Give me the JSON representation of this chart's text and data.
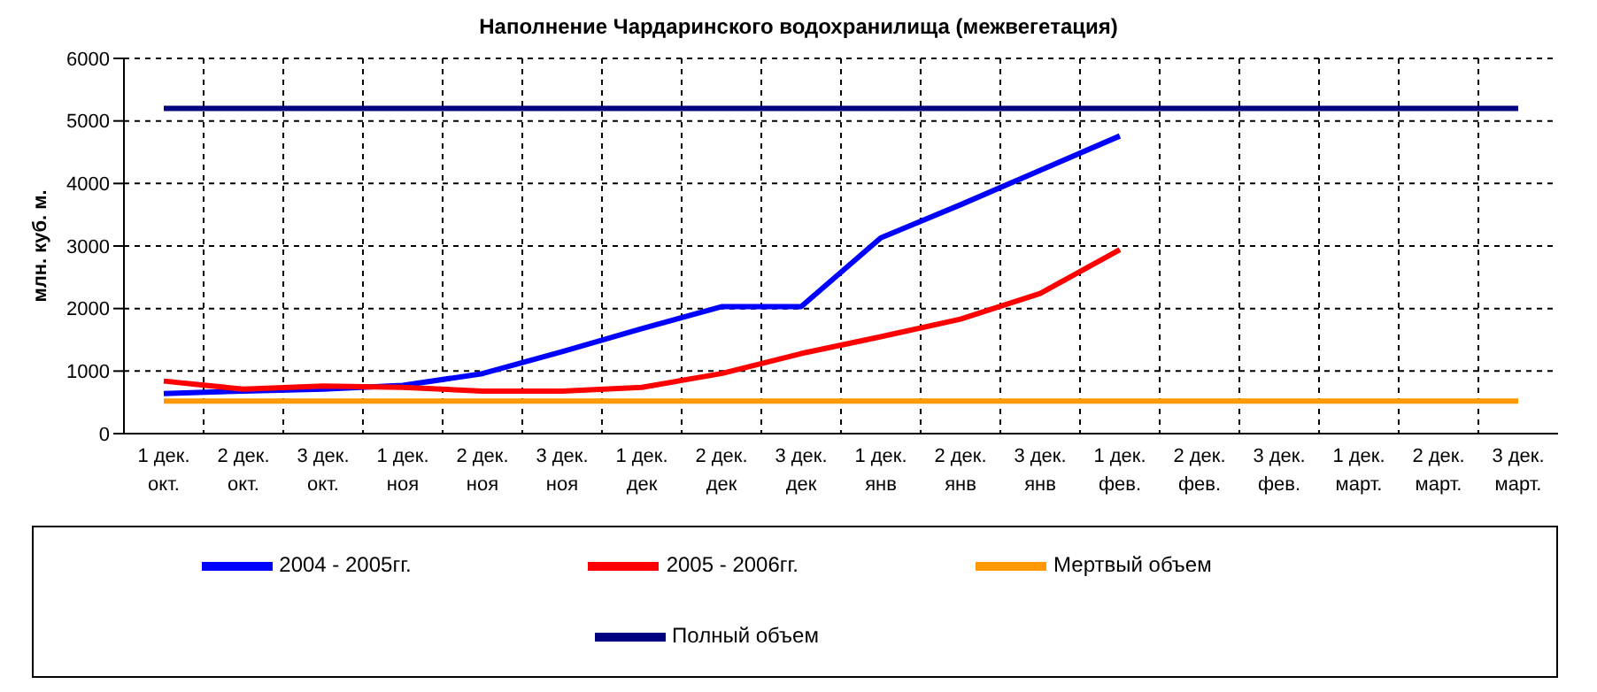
{
  "chart_data": {
    "type": "line",
    "title": "Наполнение Чардаринского водохранилища (межвегетация)",
    "ylabel": "млн. куб. м.",
    "categories": [
      "1 дек.\nокт.",
      "2 дек.\nокт.",
      "3 дек.\nокт.",
      "1 дек.\nноя",
      "2 дек.\nноя",
      "3 дек.\nноя",
      "1 дек.\nдек",
      "2 дек.\nдек",
      "3 дек.\nдек",
      "1 дек.\nянв",
      "2 дек.\nянв",
      "3 дек.\nянв",
      "1 дек.\nфев.",
      "2 дек.\nфев.",
      "3 дек.\nфев.",
      "1 дек.\nмарт.",
      "2 дек.\nмарт.",
      "3 дек.\nмарт."
    ],
    "series": [
      {
        "name": "2004 - 2005гг.",
        "color": "#0000ff",
        "values": [
          640,
          680,
          710,
          770,
          960,
          1310,
          1680,
          2030,
          2030,
          3130,
          3660,
          4210,
          4760,
          null,
          null,
          null,
          null,
          null
        ]
      },
      {
        "name": "2005 - 2006гг.",
        "color": "#ff0000",
        "values": [
          840,
          710,
          760,
          740,
          680,
          680,
          740,
          960,
          1280,
          1550,
          1830,
          2240,
          2940,
          null,
          null,
          null,
          null,
          null
        ]
      },
      {
        "name": "Полный объем",
        "color": "#000080",
        "values": [
          5200,
          5200,
          5200,
          5200,
          5200,
          5200,
          5200,
          5200,
          5200,
          5200,
          5200,
          5200,
          5200,
          5200,
          5200,
          5200,
          5200,
          5200
        ]
      },
      {
        "name": "Мертвый объем",
        "color": "#ff9900",
        "values": [
          520,
          520,
          520,
          520,
          520,
          520,
          520,
          520,
          520,
          520,
          520,
          520,
          520,
          520,
          520,
          520,
          520,
          520
        ]
      }
    ],
    "ylim": [
      0,
      6000
    ],
    "yticks": [
      0,
      1000,
      2000,
      3000,
      4000,
      5000,
      6000
    ],
    "grid": true,
    "legend": "bottom",
    "marker": "none",
    "line_style": "solid"
  }
}
